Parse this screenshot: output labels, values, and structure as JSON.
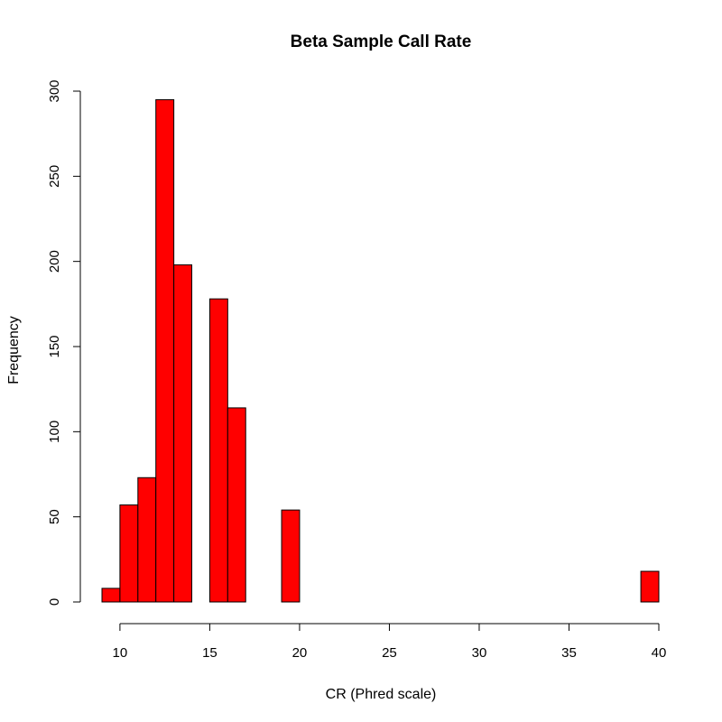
{
  "chart_data": {
    "type": "bar",
    "title": "Beta Sample Call Rate",
    "xlabel": "CR (Phred scale)",
    "ylabel": "Frequency",
    "xlim": [
      9,
      40
    ],
    "ylim": [
      0,
      300
    ],
    "x_ticks": [
      10,
      15,
      20,
      25,
      30,
      35,
      40
    ],
    "y_ticks": [
      0,
      50,
      100,
      150,
      200,
      250,
      300
    ],
    "bin_width": 1,
    "bins": [
      {
        "x0": 9,
        "x1": 10,
        "count": 8
      },
      {
        "x0": 10,
        "x1": 11,
        "count": 57
      },
      {
        "x0": 11,
        "x1": 12,
        "count": 73
      },
      {
        "x0": 12,
        "x1": 13,
        "count": 295
      },
      {
        "x0": 13,
        "x1": 14,
        "count": 198
      },
      {
        "x0": 14,
        "x1": 15,
        "count": 0
      },
      {
        "x0": 15,
        "x1": 16,
        "count": 178
      },
      {
        "x0": 16,
        "x1": 17,
        "count": 114
      },
      {
        "x0": 17,
        "x1": 18,
        "count": 0
      },
      {
        "x0": 18,
        "x1": 19,
        "count": 0
      },
      {
        "x0": 19,
        "x1": 20,
        "count": 54
      },
      {
        "x0": 20,
        "x1": 21,
        "count": 0
      },
      {
        "x0": 21,
        "x1": 22,
        "count": 0
      },
      {
        "x0": 22,
        "x1": 23,
        "count": 0
      },
      {
        "x0": 23,
        "x1": 24,
        "count": 0
      },
      {
        "x0": 24,
        "x1": 25,
        "count": 0
      },
      {
        "x0": 25,
        "x1": 26,
        "count": 0
      },
      {
        "x0": 26,
        "x1": 27,
        "count": 0
      },
      {
        "x0": 27,
        "x1": 28,
        "count": 0
      },
      {
        "x0": 28,
        "x1": 29,
        "count": 0
      },
      {
        "x0": 29,
        "x1": 30,
        "count": 0
      },
      {
        "x0": 30,
        "x1": 31,
        "count": 0
      },
      {
        "x0": 31,
        "x1": 32,
        "count": 0
      },
      {
        "x0": 32,
        "x1": 33,
        "count": 0
      },
      {
        "x0": 33,
        "x1": 34,
        "count": 0
      },
      {
        "x0": 34,
        "x1": 35,
        "count": 0
      },
      {
        "x0": 35,
        "x1": 36,
        "count": 0
      },
      {
        "x0": 36,
        "x1": 37,
        "count": 0
      },
      {
        "x0": 37,
        "x1": 38,
        "count": 0
      },
      {
        "x0": 38,
        "x1": 39,
        "count": 0
      },
      {
        "x0": 39,
        "x1": 40,
        "count": 18
      }
    ],
    "bar_color": "#ff0000",
    "bar_edge_color": "#000000",
    "grid": false,
    "legend": "none"
  }
}
